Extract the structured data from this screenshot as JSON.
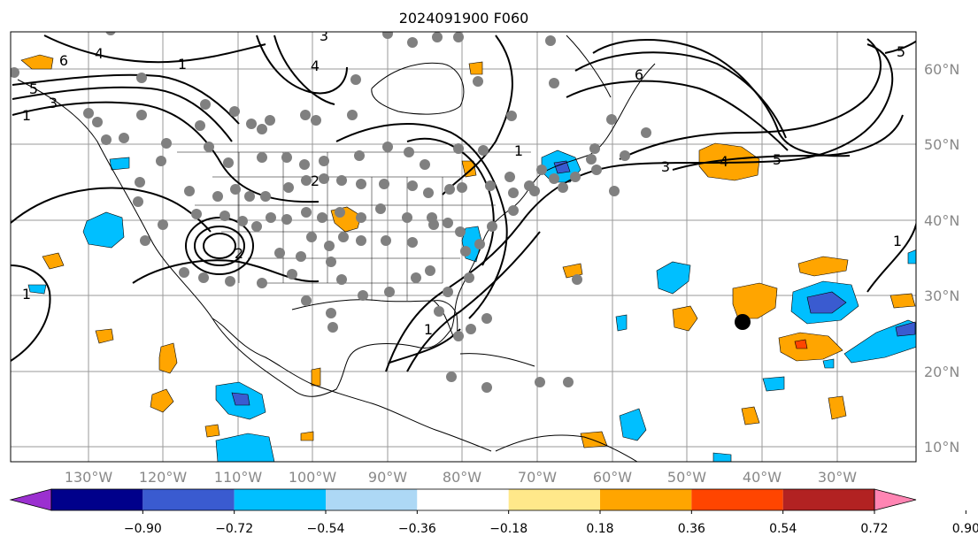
{
  "title": "2024091900 F060",
  "map": {
    "lon_labels": [
      "130°W",
      "120°W",
      "110°W",
      "100°W",
      "90°W",
      "80°W",
      "70°W",
      "60°W",
      "50°W",
      "40°W",
      "30°W"
    ],
    "lat_labels": [
      "60°N",
      "50°N",
      "40°N",
      "30°N",
      "20°N",
      "10°N"
    ],
    "contour_labels": [
      "6",
      "4",
      "5",
      "3",
      "1",
      "2",
      "1",
      "3",
      "6",
      "4",
      "5",
      "4",
      "3",
      "5",
      "1",
      "1",
      "1",
      "2",
      "1"
    ],
    "land_color": "#ffffff",
    "coast_color": "#000000",
    "station_color": "#808080",
    "marker_color": "#000000"
  },
  "colorbar": {
    "tick_labels": [
      "−0.90",
      "−0.72",
      "−0.54",
      "−0.36",
      "−0.18",
      "0.18",
      "0.36",
      "0.54",
      "0.72",
      "0.90"
    ],
    "colors": [
      "#9b30d0",
      "#00008b",
      "#3a5bd0",
      "#00bfff",
      "#add8f5",
      "#ffffff",
      "#ffe88a",
      "#ffa500",
      "#ff4500",
      "#b22222",
      "#ff85b3"
    ]
  }
}
